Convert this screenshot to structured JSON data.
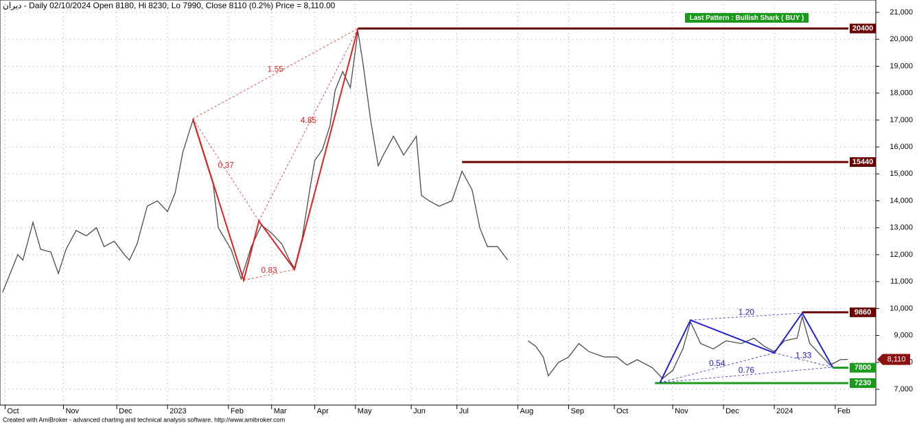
{
  "chart_data": {
    "type": "line",
    "title": "ديران - Daily 02/10/2024 Open 8180, Hi 8230, Lo 7990, Close 8110 (0.2%) Price = 8,110.00",
    "annotation": "Last Pattern : Bullish Shark ( BUY )",
    "footer": "Created with AmiBroker - advanced charting and technical analysis software. http://www.amibroker.com",
    "color": "#4a4a4a",
    "x": [
      1,
      4,
      7,
      9,
      13,
      16,
      20,
      23,
      26,
      30,
      34,
      38,
      41,
      45,
      49,
      51,
      54,
      58,
      62,
      66,
      69,
      72,
      74,
      76,
      80,
      84,
      86,
      91,
      95,
      99,
      103,
      107,
      111,
      114,
      116,
      119,
      122,
      124,
      127,
      130,
      132,
      135,
      138,
      141,
      143,
      146,
      149,
      151,
      155,
      159,
      164,
      166,
      169,
      173,
      178,
      182,
      186,
      189,
      192,
      196,
      200,
      203,
      208,
      211,
      214,
      216,
      220,
      224,
      228,
      232,
      238,
      243,
      247,
      251,
      257,
      261,
      265,
      269,
      272,
      276,
      281,
      286,
      292,
      297,
      301,
      305,
      309,
      314,
      316,
      319,
      323,
      327,
      331,
      334
    ],
    "values": [
      10600,
      11300,
      12000,
      11800,
      13200,
      12200,
      12100,
      11300,
      12200,
      12900,
      12700,
      13000,
      12300,
      12500,
      12000,
      11800,
      12400,
      13800,
      14000,
      13600,
      14300,
      15800,
      16400,
      17000,
      15800,
      14600,
      13000,
      12200,
      11100,
      12300,
      13100,
      12800,
      12400,
      11800,
      11500,
      12600,
      14400,
      15500,
      15900,
      16800,
      18100,
      18800,
      18200,
      20300,
      19100,
      17000,
      15300,
      15700,
      16400,
      15700,
      16400,
      14200,
      14000,
      13800,
      14000,
      15100,
      14400,
      13000,
      12300,
      12300,
      11800,
      null,
      8800,
      8600,
      8200,
      7500,
      8000,
      8200,
      8700,
      8400,
      8200,
      8200,
      7900,
      8100,
      7800,
      7400,
      7700,
      8500,
      9500,
      8700,
      8500,
      8800,
      8700,
      8900,
      8600,
      8400,
      8800,
      8900,
      9700,
      8700,
      8300,
      7900,
      8100,
      8110
    ],
    "xlim": [
      0,
      345
    ],
    "xticks": [
      {
        "value": 2,
        "label": "Oct"
      },
      {
        "value": 25,
        "label": "Nov"
      },
      {
        "value": 46,
        "label": "Dec"
      },
      {
        "value": 66,
        "label": "2023"
      },
      {
        "value": 90,
        "label": "Feb"
      },
      {
        "value": 107,
        "label": "Mar"
      },
      {
        "value": 124,
        "label": "Apr"
      },
      {
        "value": 140,
        "label": "May"
      },
      {
        "value": 162,
        "label": "Jun"
      },
      {
        "value": 180,
        "label": "Jul"
      },
      {
        "value": 204,
        "label": "Aug"
      },
      {
        "value": 224,
        "label": "Sep"
      },
      {
        "value": 242,
        "label": "Oct"
      },
      {
        "value": 265,
        "label": "Nov"
      },
      {
        "value": 285,
        "label": "Dec"
      },
      {
        "value": 305,
        "label": "2024"
      },
      {
        "value": 329,
        "label": "Feb"
      }
    ],
    "ylim": [
      7000,
      21000
    ],
    "yticks": [
      {
        "value": 7000,
        "label": "7,000"
      },
      {
        "value": 8000,
        "label": "8,000"
      },
      {
        "value": 9000,
        "label": "9,000"
      },
      {
        "value": 10000,
        "label": "10,000"
      },
      {
        "value": 11000,
        "label": "11,000"
      },
      {
        "value": 12000,
        "label": "12,000"
      },
      {
        "value": 13000,
        "label": "13,000"
      },
      {
        "value": 14000,
        "label": "14,000"
      },
      {
        "value": 15000,
        "label": "15,000"
      },
      {
        "value": 16000,
        "label": "16,000"
      },
      {
        "value": 17000,
        "label": "17,000"
      },
      {
        "value": 18000,
        "label": "18,000"
      },
      {
        "value": 19000,
        "label": "19,000"
      },
      {
        "value": 20000,
        "label": "20,000"
      },
      {
        "value": 21000,
        "label": "21,000"
      }
    ],
    "grid": true,
    "patterns": [
      {
        "color": "#e02020",
        "x": [
          76,
          96,
          102,
          116,
          141
        ],
        "values": [
          17050,
          11050,
          13250,
          11450,
          20400
        ],
        "ratios": [
          0.37,
          0.83,
          4.85,
          1.55
        ]
      },
      {
        "color": "#2020d0",
        "x": [
          260,
          272,
          305,
          316,
          328
        ],
        "values": [
          7250,
          9570,
          8350,
          9830,
          7820
        ],
        "ratios": [
          0.54,
          {
            "value": 1.2,
            "label": "1.20"
          },
          1.33,
          0.76
        ]
      }
    ],
    "levels": [
      {
        "value": 20400,
        "x": 141,
        "color": "#6b0000"
      },
      {
        "value": 15440,
        "x": 182,
        "color": "#6b0000"
      },
      {
        "value": 9860,
        "x": 316,
        "color": "#6b0000"
      },
      {
        "value": 7800,
        "x": 328,
        "color": "#1a9a1a"
      },
      {
        "value": 7230,
        "x": 258,
        "color": "#1a9a1a"
      }
    ],
    "last_price": 8110,
    "last_price_label": "8,110"
  }
}
